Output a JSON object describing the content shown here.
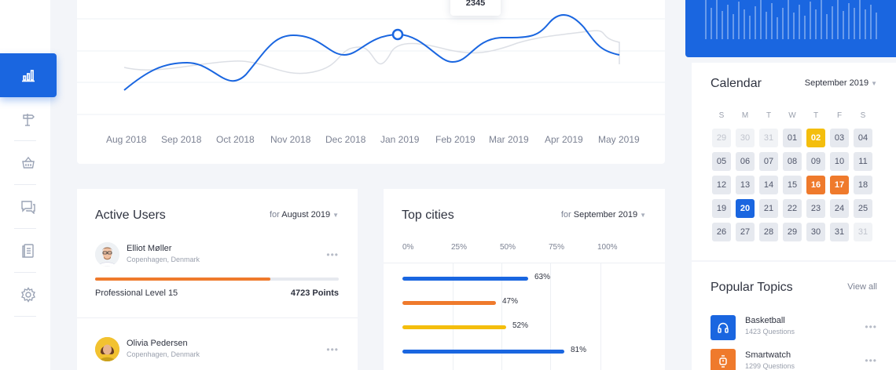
{
  "sidebar": {
    "items": [
      {
        "name": "analytics",
        "icon": "bar-chart-icon",
        "active": true
      },
      {
        "name": "signpost",
        "icon": "signpost-icon",
        "active": false
      },
      {
        "name": "basket",
        "icon": "basket-icon",
        "active": false
      },
      {
        "name": "messages",
        "icon": "chat-icon",
        "active": false
      },
      {
        "name": "documents",
        "icon": "clipboard-icon",
        "active": false
      },
      {
        "name": "settings",
        "icon": "gear-icon",
        "active": false
      }
    ]
  },
  "chart": {
    "tooltip_value": "2345",
    "months": [
      "Aug 2018",
      "Sep 2018",
      "Oct 2018",
      "Nov 2018",
      "Dec 2018",
      "Jan 2019",
      "Feb 2019",
      "Mar 2019",
      "Apr 2019",
      "May 2019"
    ],
    "colors": {
      "primary": "#1a66e0",
      "secondary": "#dcdfe5"
    }
  },
  "calendar": {
    "title": "Calendar",
    "month": "September 2019",
    "weekdays": [
      "S",
      "M",
      "T",
      "W",
      "T",
      "F",
      "S"
    ],
    "weeks": [
      [
        "29",
        "30",
        "31",
        "01",
        "02",
        "03",
        "04"
      ],
      [
        "05",
        "06",
        "07",
        "08",
        "09",
        "10",
        "11"
      ],
      [
        "12",
        "13",
        "14",
        "15",
        "16",
        "17",
        "18"
      ],
      [
        "19",
        "20",
        "21",
        "22",
        "23",
        "24",
        "25"
      ],
      [
        "26",
        "27",
        "28",
        "29",
        "30",
        "31",
        "31"
      ]
    ]
  },
  "topics": {
    "title": "Popular Topics",
    "view_all": "View all",
    "items": [
      {
        "name": "Basketball",
        "questions": "1423 Questions",
        "icon": "headphones-icon",
        "color": "#1a66e0"
      },
      {
        "name": "Smartwatch",
        "questions": "1299 Questions",
        "icon": "watch-icon",
        "color": "#ef7a2c"
      }
    ]
  },
  "active_users": {
    "title": "Active Users",
    "filter_prefix": "for",
    "filter_value": "August 2019",
    "users": [
      {
        "name": "Elliot Møller",
        "location": "Copenhagen, Denmark",
        "level": "Professional Level 15",
        "points": "4723 Points",
        "progress": 0.72
      },
      {
        "name": "Olivia Pedersen",
        "location": "Copenhagen, Denmark"
      }
    ]
  },
  "top_cities": {
    "title": "Top cities",
    "filter_prefix": "for",
    "filter_value": "September 2019"
  },
  "chart_data": {
    "type": "bar",
    "title": "Top cities",
    "orientation": "horizontal",
    "x_ticks": [
      "0%",
      "25%",
      "50%",
      "75%",
      "100%"
    ],
    "xlim": [
      0,
      100
    ],
    "values": [
      63,
      47,
      52,
      81
    ],
    "labels": [
      "63%",
      "47%",
      "52%",
      "81%"
    ],
    "colors": [
      "#1a66e0",
      "#ef7a2c",
      "#f4be0d",
      "#1a66e0"
    ]
  }
}
